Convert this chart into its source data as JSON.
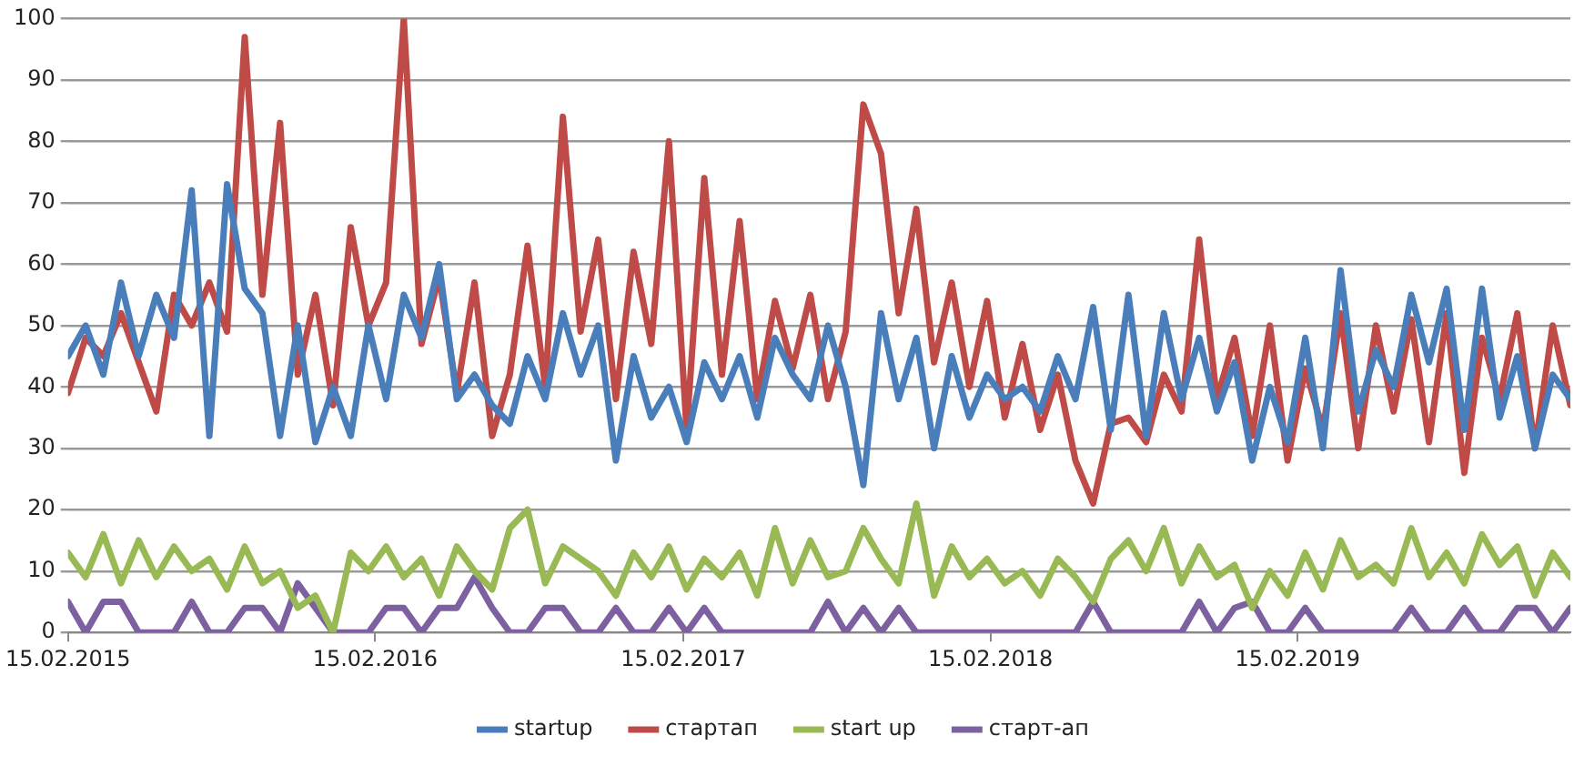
{
  "chart_data": {
    "type": "line",
    "x": [
      "2015-02-15",
      "2015-03-08",
      "2015-03-29",
      "2015-04-19",
      "2015-05-10",
      "2015-05-31",
      "2015-06-21",
      "2015-07-12",
      "2015-08-02",
      "2015-08-23",
      "2015-09-13",
      "2015-10-04",
      "2015-10-25",
      "2015-11-15",
      "2015-12-06",
      "2015-12-27",
      "2016-01-17",
      "2016-02-07",
      "2016-02-28",
      "2016-03-20",
      "2016-04-10",
      "2016-05-01",
      "2016-05-22",
      "2016-06-12",
      "2016-07-03",
      "2016-07-24",
      "2016-08-14",
      "2016-09-04",
      "2016-09-25",
      "2016-10-16",
      "2016-11-06",
      "2016-11-27",
      "2016-12-18",
      "2017-01-08",
      "2017-01-29",
      "2017-02-19",
      "2017-03-12",
      "2017-04-02",
      "2017-04-23",
      "2017-05-14",
      "2017-06-04",
      "2017-06-25",
      "2017-07-16",
      "2017-08-06",
      "2017-08-27",
      "2017-09-17",
      "2017-10-08",
      "2017-10-29",
      "2017-11-19",
      "2017-12-10",
      "2017-12-31",
      "2018-01-21",
      "2018-02-11",
      "2018-03-04",
      "2018-03-25",
      "2018-04-15",
      "2018-05-06",
      "2018-05-27",
      "2018-06-17",
      "2018-07-08",
      "2018-07-29",
      "2018-08-19",
      "2018-09-09",
      "2018-09-30",
      "2018-10-21",
      "2018-11-11",
      "2018-12-02",
      "2018-12-23",
      "2019-01-13",
      "2019-02-03",
      "2019-02-24",
      "2019-03-17",
      "2019-04-07",
      "2019-04-28",
      "2019-05-19",
      "2019-06-09",
      "2019-06-30",
      "2019-07-21",
      "2019-08-11",
      "2019-09-01",
      "2019-09-22",
      "2019-10-13",
      "2019-11-03",
      "2019-11-24",
      "2019-12-15",
      "2020-01-05"
    ],
    "series": [
      {
        "name": "startup",
        "color": "#4a7ebb",
        "values": [
          45,
          50,
          42,
          57,
          45,
          55,
          48,
          72,
          32,
          73,
          56,
          52,
          32,
          50,
          31,
          40,
          32,
          50,
          38,
          55,
          48,
          60,
          38,
          42,
          37,
          34,
          45,
          38,
          52,
          42,
          50,
          28,
          45,
          35,
          40,
          31,
          44,
          38,
          45,
          35,
          48,
          42,
          38,
          50,
          40,
          24,
          52,
          38,
          48,
          30,
          45,
          35,
          42,
          38,
          40,
          36,
          45,
          38,
          53,
          33,
          55,
          32,
          52,
          38,
          48,
          36,
          44,
          28,
          40,
          31,
          48,
          30,
          59,
          36,
          46,
          40,
          55,
          44,
          56,
          33,
          56,
          35,
          45,
          30,
          42,
          38
        ]
      },
      {
        "name": "стартап",
        "color": "#be4b48",
        "values": [
          39,
          48,
          45,
          52,
          44,
          36,
          55,
          50,
          57,
          49,
          97,
          55,
          83,
          42,
          55,
          37,
          66,
          50,
          57,
          100,
          47,
          58,
          39,
          57,
          32,
          42,
          63,
          40,
          84,
          49,
          64,
          38,
          62,
          47,
          80,
          33,
          74,
          42,
          67,
          38,
          54,
          43,
          55,
          38,
          49,
          86,
          78,
          52,
          69,
          44,
          57,
          40,
          54,
          35,
          47,
          33,
          42,
          28,
          21,
          34,
          35,
          31,
          42,
          36,
          64,
          38,
          48,
          32,
          50,
          28,
          43,
          33,
          52,
          30,
          50,
          36,
          51,
          31,
          52,
          26,
          48,
          38,
          52,
          30,
          50,
          37
        ]
      },
      {
        "name": "start up",
        "color": "#98b954",
        "values": [
          13,
          9,
          16,
          8,
          15,
          9,
          14,
          10,
          12,
          7,
          14,
          8,
          10,
          4,
          6,
          0,
          13,
          10,
          14,
          9,
          12,
          6,
          14,
          10,
          7,
          17,
          20,
          8,
          14,
          12,
          10,
          6,
          13,
          9,
          14,
          7,
          12,
          9,
          13,
          6,
          17,
          8,
          15,
          9,
          10,
          17,
          12,
          8,
          21,
          6,
          14,
          9,
          12,
          8,
          10,
          6,
          12,
          9,
          5,
          12,
          15,
          10,
          17,
          8,
          14,
          9,
          11,
          4,
          10,
          6,
          13,
          7,
          15,
          9,
          11,
          8,
          17,
          9,
          13,
          8,
          16,
          11,
          14,
          6,
          13,
          9
        ]
      },
      {
        "name": "старт-ап",
        "color": "#7d60a0",
        "values": [
          5,
          0,
          5,
          5,
          0,
          0,
          0,
          5,
          0,
          0,
          4,
          4,
          0,
          8,
          4,
          0,
          0,
          0,
          4,
          4,
          0,
          4,
          4,
          9,
          4,
          0,
          0,
          4,
          4,
          0,
          0,
          4,
          0,
          0,
          4,
          0,
          4,
          0,
          0,
          0,
          0,
          0,
          0,
          5,
          0,
          4,
          0,
          4,
          0,
          0,
          0,
          0,
          0,
          0,
          0,
          0,
          0,
          0,
          5,
          0,
          0,
          0,
          0,
          0,
          5,
          0,
          4,
          5,
          0,
          0,
          4,
          0,
          0,
          0,
          0,
          0,
          4,
          0,
          0,
          4,
          0,
          0,
          4,
          4,
          0,
          4
        ]
      }
    ],
    "xlim": [
      "2015-02-15",
      "2020-01-05"
    ],
    "xticks": [
      {
        "value": "2015-02-15",
        "label": "15.02.2015"
      },
      {
        "value": "2016-02-15",
        "label": "15.02.2016"
      },
      {
        "value": "2017-02-15",
        "label": "15.02.2017"
      },
      {
        "value": "2018-02-15",
        "label": "15.02.2018"
      },
      {
        "value": "2019-02-15",
        "label": "15.02.2019"
      }
    ],
    "ylim": [
      0,
      100
    ],
    "yticks": [
      0,
      10,
      20,
      30,
      40,
      50,
      60,
      70,
      80,
      90,
      100
    ],
    "grid": "y",
    "legend": "bottom",
    "marker": "none",
    "line_style": "solid"
  }
}
